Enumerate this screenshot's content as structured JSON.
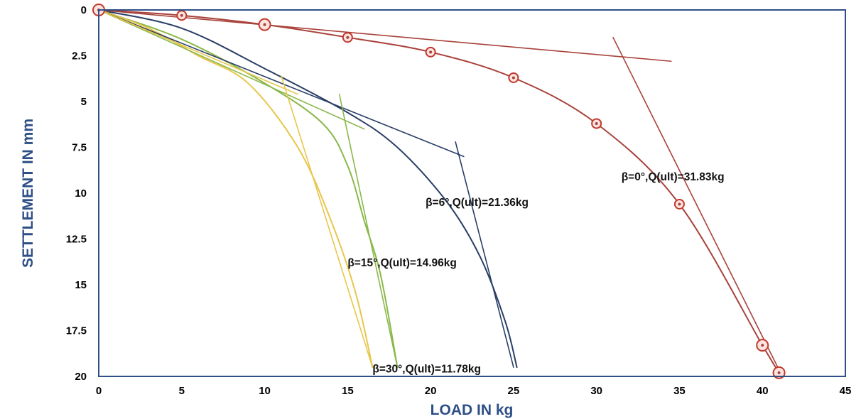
{
  "chart_data": {
    "type": "line",
    "xlabel": "LOAD IN kg",
    "ylabel": "SETTLEMENT IN mm",
    "xlim": [
      0,
      45
    ],
    "ylim": [
      0,
      20
    ],
    "y_inverted": true,
    "x_ticks": [
      "0",
      "5",
      "10",
      "15",
      "20",
      "25",
      "30",
      "35",
      "40",
      "45"
    ],
    "y_ticks": [
      "0",
      "2.5",
      "5",
      "7.5",
      "10",
      "12.5",
      "15",
      "17.5",
      "20"
    ],
    "grid": false,
    "legend": "none",
    "series": [
      {
        "color": "#a8423a",
        "marker": "circle",
        "points": [
          [
            0,
            0
          ],
          [
            5,
            0.3
          ],
          [
            10,
            0.8
          ],
          [
            15,
            1.5
          ],
          [
            20,
            2.3
          ],
          [
            25,
            3.7
          ],
          [
            30,
            6.2
          ],
          [
            35,
            10.6
          ],
          [
            40,
            18.3
          ],
          [
            41,
            19.8
          ]
        ]
      },
      {
        "color": "#2a3f66",
        "marker": "none",
        "points": [
          [
            0,
            0
          ],
          [
            5,
            1.0
          ],
          [
            10,
            3.2
          ],
          [
            15,
            5.6
          ],
          [
            18,
            7.5
          ],
          [
            21,
            10.5
          ],
          [
            23,
            13.5
          ],
          [
            24.5,
            17.0
          ],
          [
            25.2,
            19.5
          ]
        ]
      },
      {
        "color": "#8ab84a",
        "marker": "none",
        "points": [
          [
            0,
            0
          ],
          [
            5,
            1.6
          ],
          [
            10,
            4.0
          ],
          [
            13.5,
            6.2
          ],
          [
            15,
            8.5
          ],
          [
            16,
            11.5
          ],
          [
            17,
            14.5
          ],
          [
            18,
            19.5
          ]
        ]
      },
      {
        "color": "#e8c64a",
        "marker": "none",
        "points": [
          [
            0,
            0
          ],
          [
            3,
            1.0
          ],
          [
            6,
            2.5
          ],
          [
            9,
            4.0
          ],
          [
            12,
            7.5
          ],
          [
            14,
            11.5
          ],
          [
            15.5,
            15.5
          ],
          [
            16.5,
            19.5
          ]
        ]
      }
    ],
    "tangent_lines": [
      {
        "color": "#a8423a",
        "points": [
          [
            0,
            0
          ],
          [
            34.5,
            2.8
          ]
        ]
      },
      {
        "color": "#a8423a",
        "points": [
          [
            31,
            1.5
          ],
          [
            41.2,
            20
          ]
        ]
      },
      {
        "color": "#2a3f66",
        "points": [
          [
            0,
            0
          ],
          [
            22,
            8.0
          ]
        ]
      },
      {
        "color": "#2a3f66",
        "points": [
          [
            21.5,
            7.2
          ],
          [
            25,
            19.5
          ]
        ]
      },
      {
        "color": "#8ab84a",
        "points": [
          [
            0,
            0
          ],
          [
            16,
            6.5
          ]
        ]
      },
      {
        "color": "#8ab84a",
        "points": [
          [
            14.5,
            4.6
          ],
          [
            18,
            19.5
          ]
        ]
      },
      {
        "color": "#e8c64a",
        "points": [
          [
            0,
            0
          ],
          [
            12,
            4.6
          ]
        ]
      },
      {
        "color": "#e8c64a",
        "points": [
          [
            11,
            3.6
          ],
          [
            16.5,
            19.5
          ]
        ]
      }
    ],
    "annotations": [
      {
        "text": "β=0°,Q(ult)=31.83kg",
        "x": 31.5,
        "y": 9.1
      },
      {
        "text": "β=6°,Q(ult)=21.36kg",
        "x": 19.7,
        "y": 10.5
      },
      {
        "text": "β=15°,Q(ult)=14.96kg",
        "x": 15,
        "y": 13.8
      },
      {
        "text": "β=30°,Q(ult)=11.78kg",
        "x": 16.5,
        "y": 19.6
      }
    ]
  }
}
